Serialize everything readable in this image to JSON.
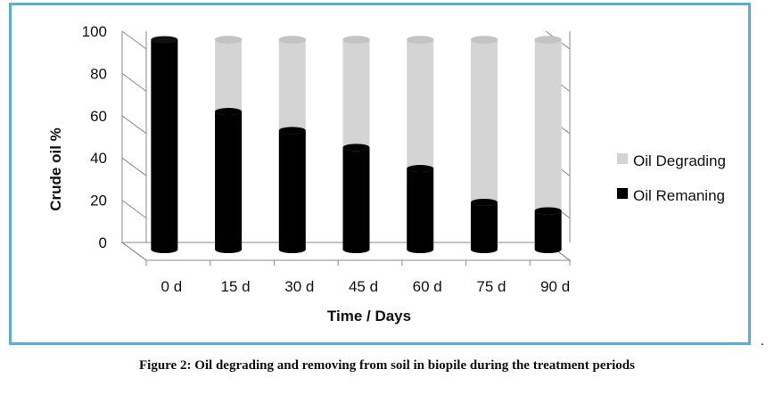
{
  "chart_data": {
    "type": "bar",
    "stacked": true,
    "categories": [
      "0 d",
      "15 d",
      "30 d",
      "45 d",
      "60 d",
      "75 d",
      "90 d"
    ],
    "series": [
      {
        "name": "Oil Remaning",
        "color": "#000000",
        "values": [
          96,
          62,
          53,
          45,
          35,
          19,
          15
        ]
      },
      {
        "name": "Oil Degrading",
        "color": "#d4d4d4",
        "values": [
          0,
          34,
          43,
          51,
          61,
          77,
          81
        ]
      }
    ],
    "xlabel": "Time / Days",
    "ylabel": "Crude oil %",
    "ylim": [
      0,
      100
    ],
    "yticks": [
      0,
      20,
      40,
      60,
      80,
      100
    ],
    "grid": true,
    "legend_position": "right",
    "three_d": true
  },
  "caption": "Figure 2:  Oil degrading and removing from soil in biopile during the treatment periods",
  "trailing_mark": "."
}
